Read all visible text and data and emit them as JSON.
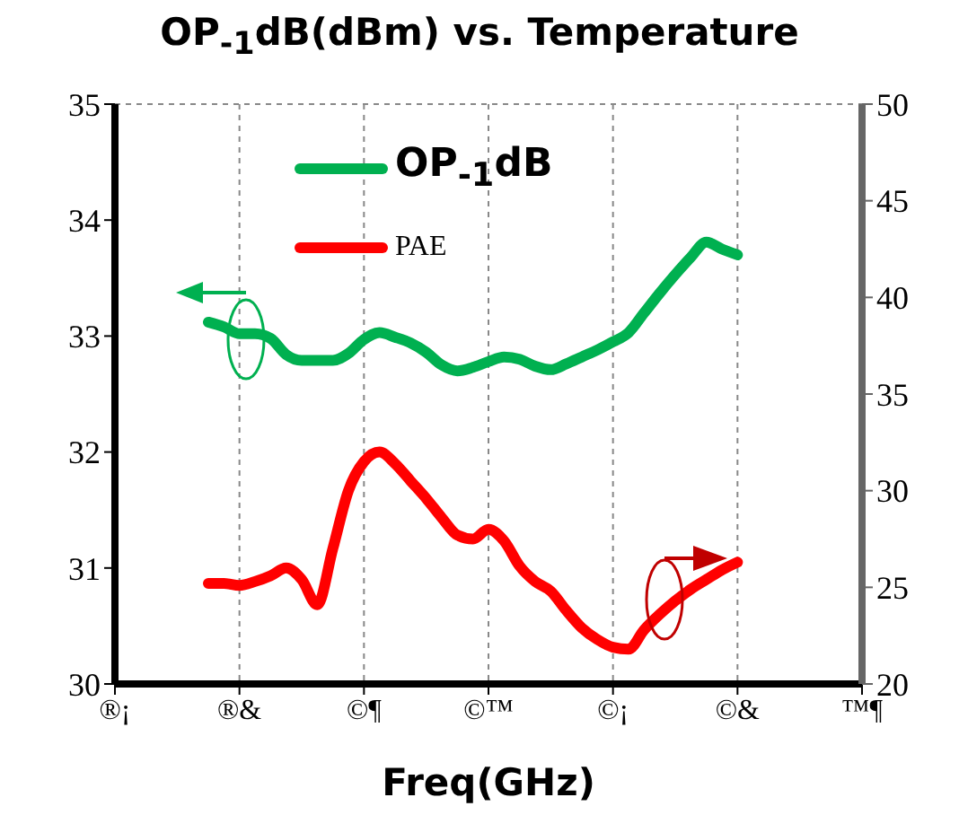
{
  "chart_data": {
    "type": "line",
    "title": "OP$_{-1}$dB(dBm) vs. Temperature",
    "xlabel": "Freq(GHz)",
    "categories": [
      "®¡",
      null,
      null,
      null,
      null,
      null,
      null,
      null,
      "®&",
      null,
      null,
      null,
      null,
      null,
      null,
      null,
      "©¶",
      null,
      null,
      null,
      null,
      null,
      null,
      null,
      "©™",
      null,
      null,
      null,
      null,
      null,
      null,
      null,
      "©¡",
      null,
      null,
      null,
      null,
      null,
      null,
      null,
      "©&",
      null,
      null,
      null,
      null,
      null,
      null,
      null,
      "™¶"
    ],
    "ylim": [
      30,
      35
    ],
    "yticks": [
      30,
      31,
      32,
      33,
      34,
      35
    ],
    "y2lim": [
      20,
      50
    ],
    "y2ticks": [
      20,
      25,
      30,
      35,
      40,
      45,
      50
    ],
    "grid": true,
    "legend": "top left",
    "marker": "none",
    "line_style": "solid",
    "series": [
      {
        "name": "OP$_{-1}$dB",
        "color": "#00b050",
        "values": [
          null,
          null,
          null,
          null,
          null,
          null,
          33.12,
          33.08,
          33.02,
          33.02,
          32.98,
          32.84,
          32.79,
          32.79,
          32.79,
          32.85,
          32.97,
          33.03,
          32.99,
          32.94,
          32.86,
          32.75,
          32.7,
          32.73,
          32.78,
          32.82,
          32.8,
          32.74,
          32.71,
          32.76,
          32.82,
          32.88,
          32.95,
          33.03,
          33.2,
          33.37,
          33.53,
          33.68,
          33.81,
          33.75,
          33.7,
          null,
          null,
          null,
          null,
          null,
          null,
          null,
          null
        ]
      },
      {
        "name": "PAE",
        "color": "#ff0000",
        "axis": "y2",
        "values": [
          null,
          null,
          null,
          null,
          null,
          null,
          25.2,
          25.2,
          25.1,
          25.3,
          25.6,
          26,
          25.4,
          24.1,
          27,
          30,
          31.5,
          32,
          31.4,
          30.5,
          29.6,
          28.6,
          27.7,
          27.5,
          28,
          27.4,
          26.1,
          25.3,
          24.8,
          23.8,
          22.9,
          22.3,
          21.9,
          21.8,
          22.8,
          23.6,
          24.3,
          24.9,
          25.4,
          25.9,
          26.3,
          null,
          null,
          null,
          null,
          null,
          null,
          null,
          null
        ]
      }
    ]
  }
}
